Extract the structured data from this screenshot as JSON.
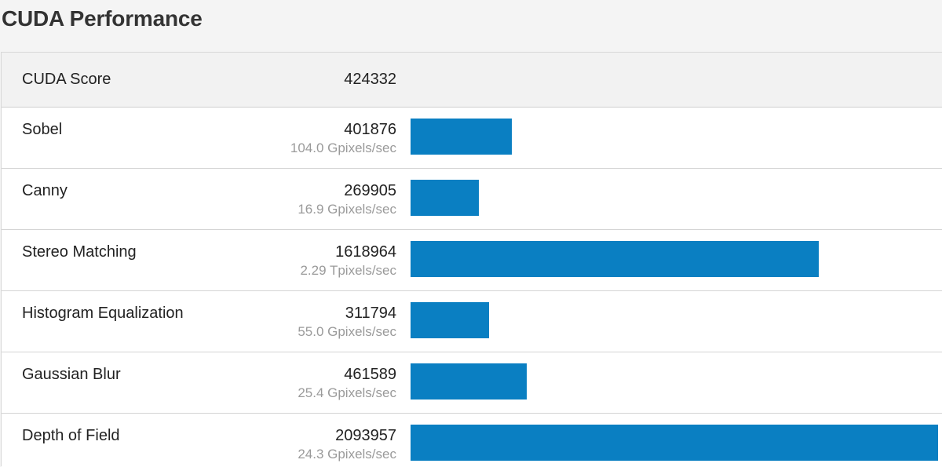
{
  "page": {
    "title": "CUDA Performance"
  },
  "summary": {
    "label": "CUDA Score",
    "score": "424332"
  },
  "colors": {
    "bar": "#0a7fc2",
    "header_bg": "#f2f2f2",
    "secondary_text": "#9a9a9a"
  },
  "max_score": 2093957,
  "rows": [
    {
      "label": "Sobel",
      "score": "401876",
      "score_value": 401876,
      "rate": "104.0 Gpixels/sec"
    },
    {
      "label": "Canny",
      "score": "269905",
      "score_value": 269905,
      "rate": "16.9 Gpixels/sec"
    },
    {
      "label": "Stereo Matching",
      "score": "1618964",
      "score_value": 1618964,
      "rate": "2.29 Tpixels/sec"
    },
    {
      "label": "Histogram Equalization",
      "score": "311794",
      "score_value": 311794,
      "rate": "55.0 Gpixels/sec"
    },
    {
      "label": "Gaussian Blur",
      "score": "461589",
      "score_value": 461589,
      "rate": "25.4 Gpixels/sec"
    },
    {
      "label": "Depth of Field",
      "score": "2093957",
      "score_value": 2093957,
      "rate": "24.3 Gpixels/sec"
    }
  ]
}
